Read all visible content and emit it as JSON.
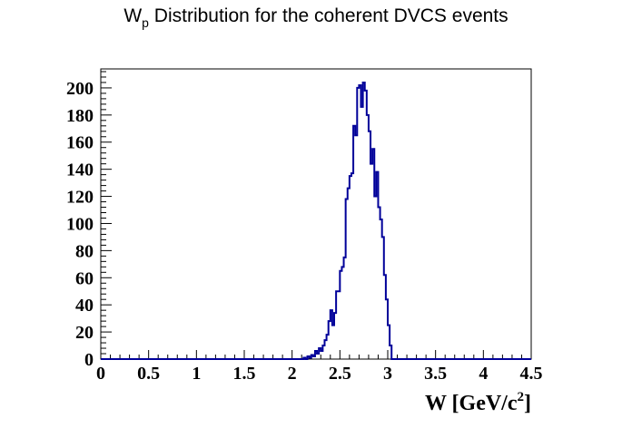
{
  "chart_data": {
    "type": "histogram",
    "title": {
      "main": "W",
      "subscript": "p",
      "rest": " Distribution for the coherent DVCS events"
    },
    "xlabel": {
      "main": "W [GeV/c",
      "superscript": "2",
      "end": "]"
    },
    "ylabel": "",
    "xlim": [
      0,
      4.5
    ],
    "ylim": [
      0,
      214
    ],
    "xticks": [
      0,
      0.5,
      1,
      1.5,
      2,
      2.5,
      3,
      3.5,
      4,
      4.5
    ],
    "xtick_labels": [
      "0",
      "0.5",
      "1",
      "1.5",
      "2",
      "2.5",
      "3",
      "3.5",
      "4",
      "4.5"
    ],
    "yticks": [
      0,
      20,
      40,
      60,
      80,
      100,
      120,
      140,
      160,
      180,
      200
    ],
    "ytick_labels": [
      "0",
      "20",
      "40",
      "60",
      "80",
      "100",
      "120",
      "140",
      "160",
      "180",
      "200"
    ],
    "line_color": "#000099",
    "bin_width": 0.02,
    "bins": [
      {
        "x": 2.12,
        "y": 1
      },
      {
        "x": 2.14,
        "y": 0
      },
      {
        "x": 2.16,
        "y": 2
      },
      {
        "x": 2.18,
        "y": 1
      },
      {
        "x": 2.2,
        "y": 3
      },
      {
        "x": 2.22,
        "y": 2
      },
      {
        "x": 2.24,
        "y": 6
      },
      {
        "x": 2.26,
        "y": 4
      },
      {
        "x": 2.28,
        "y": 8
      },
      {
        "x": 2.3,
        "y": 6
      },
      {
        "x": 2.32,
        "y": 10
      },
      {
        "x": 2.34,
        "y": 14
      },
      {
        "x": 2.36,
        "y": 18
      },
      {
        "x": 2.38,
        "y": 28
      },
      {
        "x": 2.4,
        "y": 36
      },
      {
        "x": 2.42,
        "y": 25
      },
      {
        "x": 2.44,
        "y": 34
      },
      {
        "x": 2.46,
        "y": 50
      },
      {
        "x": 2.48,
        "y": 50
      },
      {
        "x": 2.5,
        "y": 65
      },
      {
        "x": 2.52,
        "y": 68
      },
      {
        "x": 2.54,
        "y": 75
      },
      {
        "x": 2.56,
        "y": 118
      },
      {
        "x": 2.58,
        "y": 126
      },
      {
        "x": 2.6,
        "y": 135
      },
      {
        "x": 2.62,
        "y": 137
      },
      {
        "x": 2.64,
        "y": 172
      },
      {
        "x": 2.66,
        "y": 165
      },
      {
        "x": 2.68,
        "y": 200
      },
      {
        "x": 2.7,
        "y": 202
      },
      {
        "x": 2.72,
        "y": 186
      },
      {
        "x": 2.74,
        "y": 204
      },
      {
        "x": 2.76,
        "y": 198
      },
      {
        "x": 2.78,
        "y": 180
      },
      {
        "x": 2.8,
        "y": 168
      },
      {
        "x": 2.82,
        "y": 144
      },
      {
        "x": 2.84,
        "y": 155
      },
      {
        "x": 2.86,
        "y": 120
      },
      {
        "x": 2.88,
        "y": 138
      },
      {
        "x": 2.9,
        "y": 112
      },
      {
        "x": 2.92,
        "y": 103
      },
      {
        "x": 2.94,
        "y": 90
      },
      {
        "x": 2.96,
        "y": 62
      },
      {
        "x": 2.98,
        "y": 44
      },
      {
        "x": 3.0,
        "y": 25
      },
      {
        "x": 3.02,
        "y": 10
      },
      {
        "x": 3.04,
        "y": 0
      }
    ]
  }
}
